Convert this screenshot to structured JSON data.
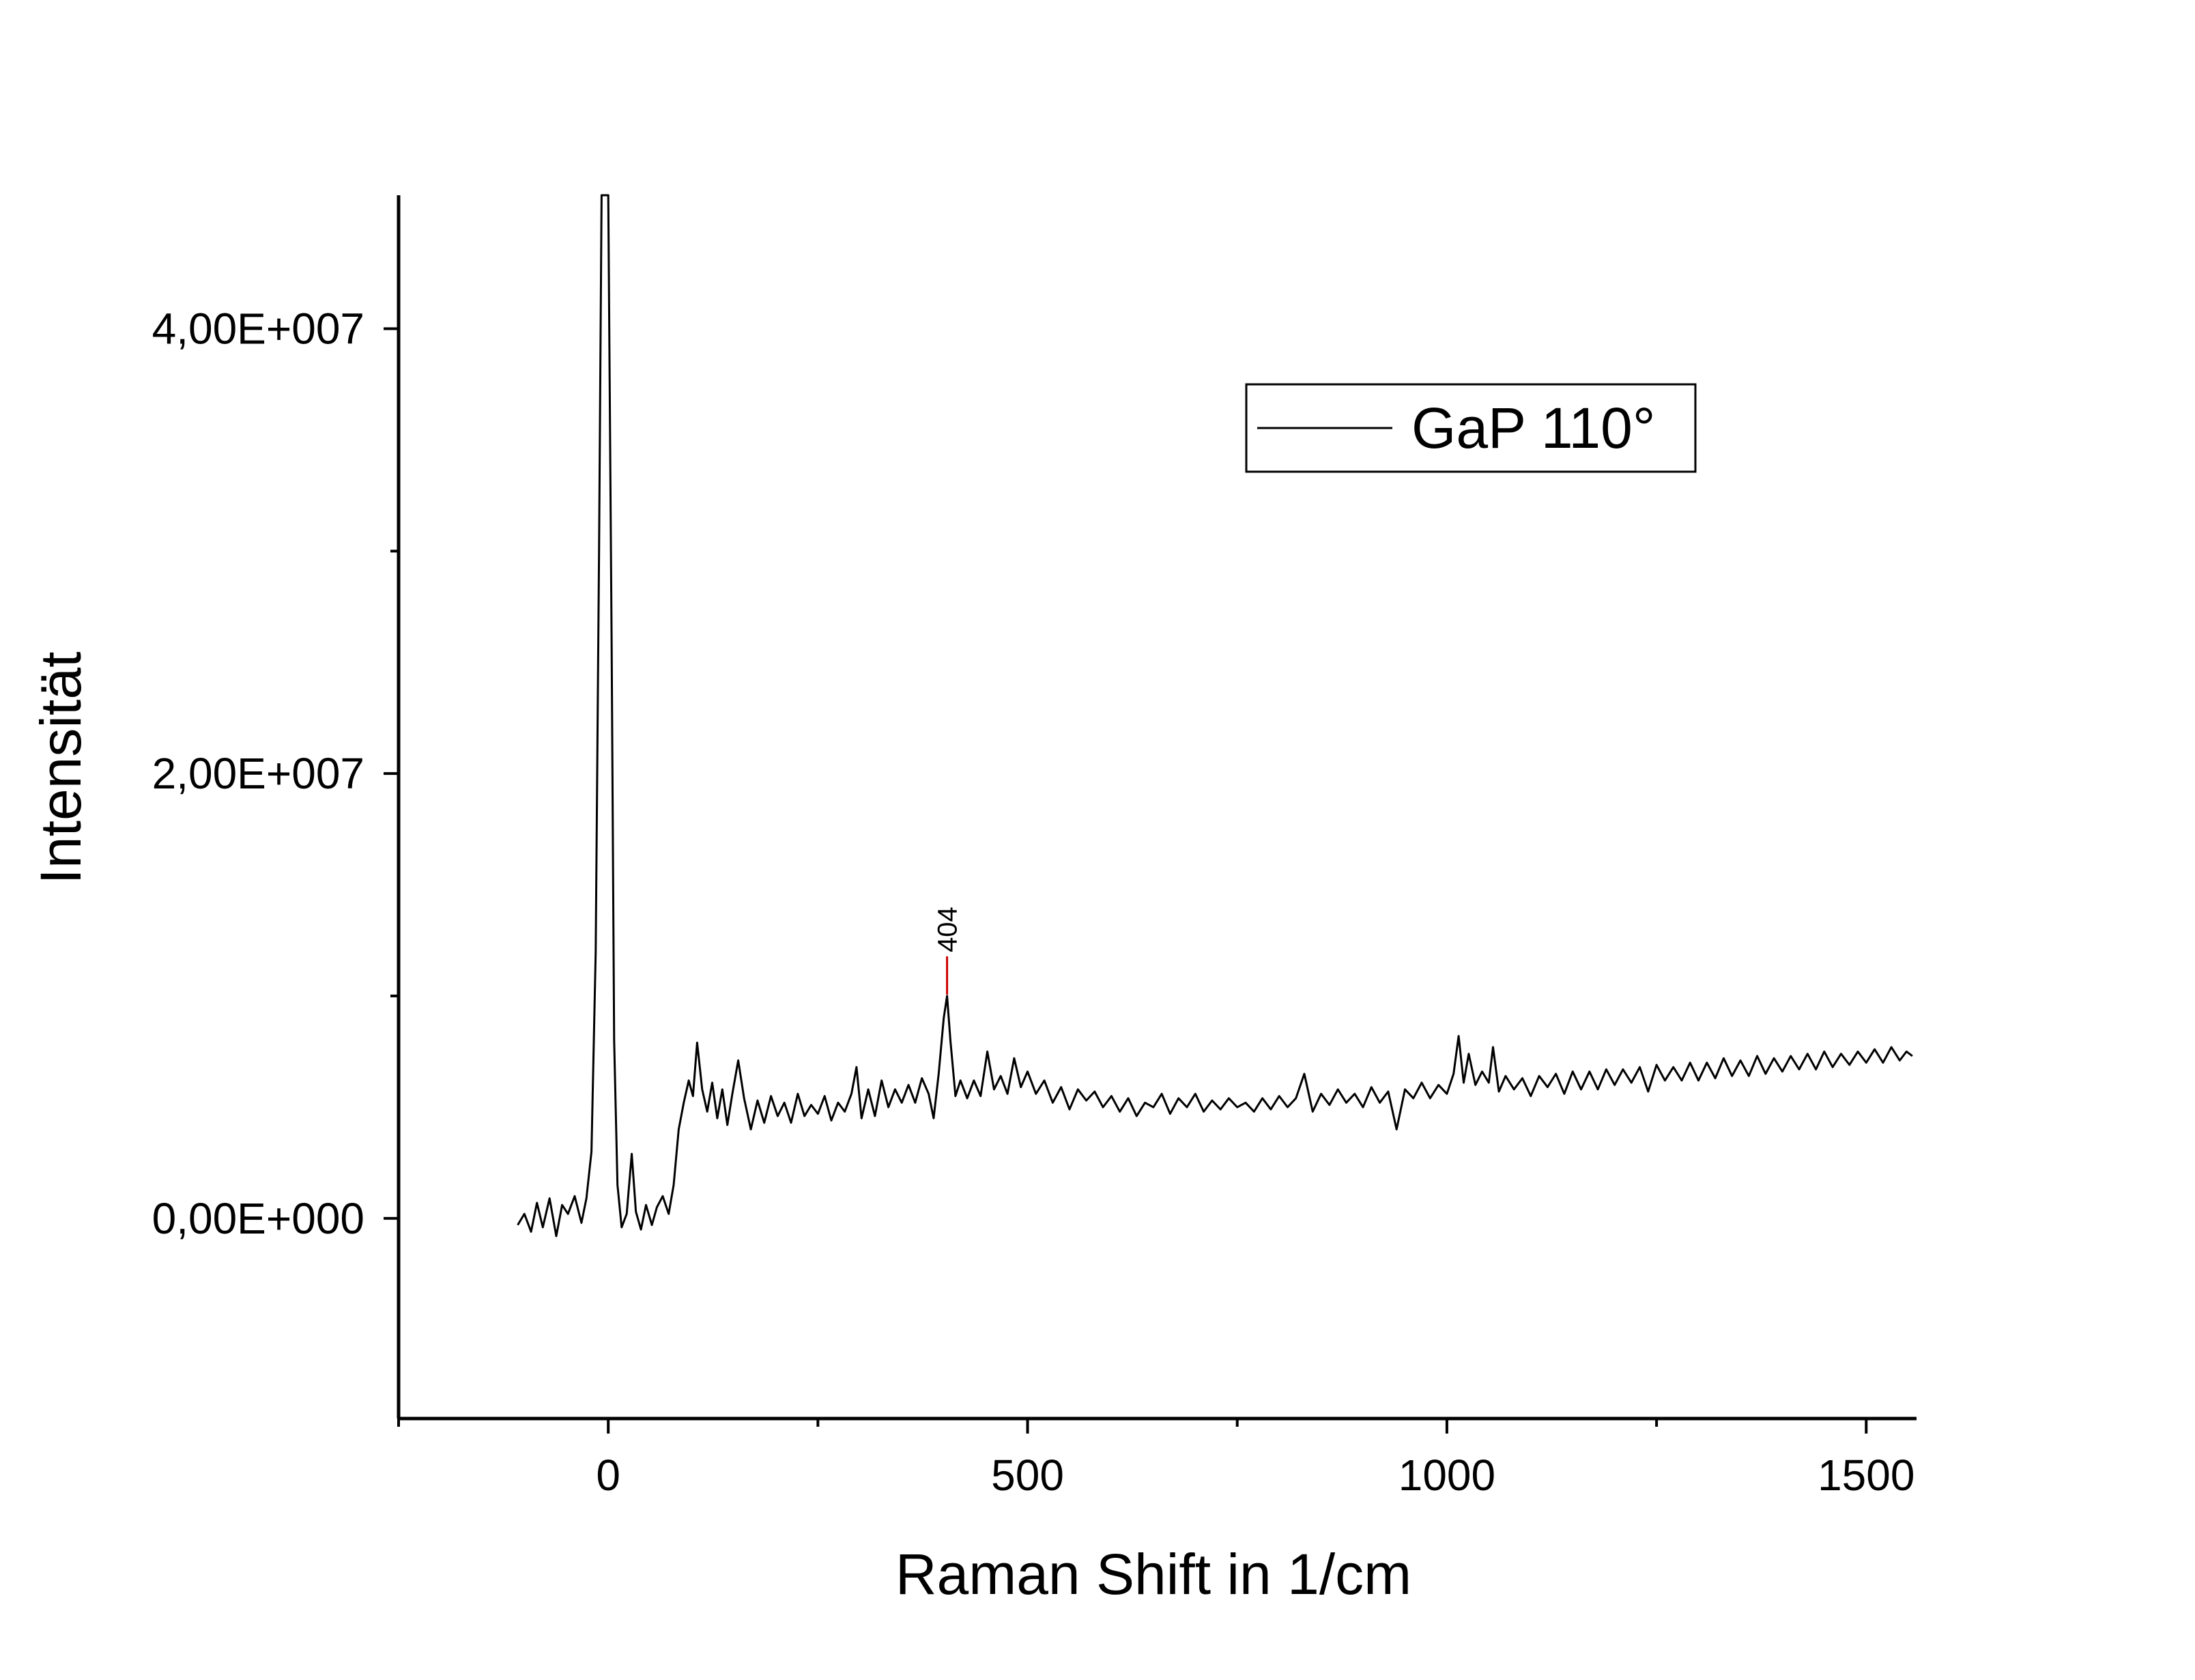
{
  "chart_data": {
    "type": "line",
    "title": "",
    "xlabel": "Raman Shift in 1/cm",
    "ylabel": "Intensität",
    "xlim": [
      -250,
      1560
    ],
    "ylim": [
      -9000000,
      46000000
    ],
    "x_ticks": [
      0,
      500,
      1000,
      1500
    ],
    "x_tick_labels": [
      "0",
      "500",
      "1000",
      "1500"
    ],
    "x_minor_ticks": [
      -250,
      250,
      750,
      1250
    ],
    "y_ticks": [
      0,
      20000000,
      40000000
    ],
    "y_tick_labels": [
      "0,00E+000",
      "2,00E+007",
      "4,00E+007"
    ],
    "y_minor_ticks": [
      10000000,
      30000000
    ],
    "grid": false,
    "legend_position": "top-right",
    "series": [
      {
        "name": "GaP 110°",
        "color": "#000000",
        "points": [
          [
            -108,
            -300000
          ],
          [
            -100,
            200000
          ],
          [
            -92,
            -600000
          ],
          [
            -85,
            700000
          ],
          [
            -78,
            -400000
          ],
          [
            -70,
            900000
          ],
          [
            -62,
            -800000
          ],
          [
            -55,
            600000
          ],
          [
            -48,
            200000
          ],
          [
            -40,
            1000000
          ],
          [
            -32,
            -200000
          ],
          [
            -26,
            900000
          ],
          [
            -20,
            3000000
          ],
          [
            -15,
            12000000
          ],
          [
            -11,
            30000000
          ],
          [
            -8,
            46000000
          ],
          [
            0,
            46000000
          ],
          [
            4,
            26000000
          ],
          [
            7,
            8000000
          ],
          [
            11,
            1500000
          ],
          [
            16,
            -400000
          ],
          [
            22,
            200000
          ],
          [
            28,
            2900000
          ],
          [
            33,
            300000
          ],
          [
            39,
            -500000
          ],
          [
            45,
            600000
          ],
          [
            52,
            -300000
          ],
          [
            58,
            500000
          ],
          [
            65,
            1000000
          ],
          [
            72,
            200000
          ],
          [
            78,
            1500000
          ],
          [
            84,
            4000000
          ],
          [
            90,
            5200000
          ],
          [
            96,
            6200000
          ],
          [
            101,
            5500000
          ],
          [
            106,
            7900000
          ],
          [
            112,
            5800000
          ],
          [
            118,
            4800000
          ],
          [
            124,
            6100000
          ],
          [
            130,
            4500000
          ],
          [
            136,
            5800000
          ],
          [
            142,
            4200000
          ],
          [
            148,
            5600000
          ],
          [
            155,
            7100000
          ],
          [
            162,
            5400000
          ],
          [
            170,
            4000000
          ],
          [
            178,
            5300000
          ],
          [
            186,
            4300000
          ],
          [
            194,
            5500000
          ],
          [
            202,
            4600000
          ],
          [
            210,
            5200000
          ],
          [
            218,
            4300000
          ],
          [
            226,
            5600000
          ],
          [
            234,
            4600000
          ],
          [
            242,
            5100000
          ],
          [
            250,
            4700000
          ],
          [
            258,
            5500000
          ],
          [
            266,
            4400000
          ],
          [
            274,
            5200000
          ],
          [
            282,
            4800000
          ],
          [
            290,
            5600000
          ],
          [
            296,
            6800000
          ],
          [
            302,
            4500000
          ],
          [
            310,
            5800000
          ],
          [
            318,
            4600000
          ],
          [
            326,
            6200000
          ],
          [
            334,
            5000000
          ],
          [
            342,
            5800000
          ],
          [
            350,
            5200000
          ],
          [
            358,
            6000000
          ],
          [
            366,
            5200000
          ],
          [
            374,
            6300000
          ],
          [
            382,
            5600000
          ],
          [
            388,
            4500000
          ],
          [
            394,
            6500000
          ],
          [
            400,
            9000000
          ],
          [
            404,
            10000000
          ],
          [
            408,
            8000000
          ],
          [
            414,
            5500000
          ],
          [
            420,
            6200000
          ],
          [
            428,
            5400000
          ],
          [
            436,
            6200000
          ],
          [
            444,
            5500000
          ],
          [
            452,
            7500000
          ],
          [
            460,
            5800000
          ],
          [
            468,
            6400000
          ],
          [
            476,
            5600000
          ],
          [
            484,
            7200000
          ],
          [
            492,
            5900000
          ],
          [
            500,
            6600000
          ],
          [
            510,
            5600000
          ],
          [
            520,
            6200000
          ],
          [
            530,
            5200000
          ],
          [
            540,
            5900000
          ],
          [
            550,
            4900000
          ],
          [
            560,
            5800000
          ],
          [
            570,
            5300000
          ],
          [
            580,
            5700000
          ],
          [
            590,
            5000000
          ],
          [
            600,
            5500000
          ],
          [
            610,
            4800000
          ],
          [
            620,
            5400000
          ],
          [
            630,
            4600000
          ],
          [
            640,
            5200000
          ],
          [
            650,
            5000000
          ],
          [
            660,
            5600000
          ],
          [
            670,
            4700000
          ],
          [
            680,
            5400000
          ],
          [
            690,
            5000000
          ],
          [
            700,
            5600000
          ],
          [
            710,
            4800000
          ],
          [
            720,
            5300000
          ],
          [
            730,
            4900000
          ],
          [
            740,
            5400000
          ],
          [
            750,
            5000000
          ],
          [
            760,
            5200000
          ],
          [
            770,
            4800000
          ],
          [
            780,
            5400000
          ],
          [
            790,
            4900000
          ],
          [
            800,
            5500000
          ],
          [
            810,
            5000000
          ],
          [
            820,
            5400000
          ],
          [
            830,
            6500000
          ],
          [
            840,
            4800000
          ],
          [
            850,
            5600000
          ],
          [
            860,
            5100000
          ],
          [
            870,
            5800000
          ],
          [
            880,
            5200000
          ],
          [
            890,
            5600000
          ],
          [
            900,
            5000000
          ],
          [
            910,
            5900000
          ],
          [
            920,
            5200000
          ],
          [
            930,
            5700000
          ],
          [
            940,
            4000000
          ],
          [
            950,
            5800000
          ],
          [
            960,
            5400000
          ],
          [
            970,
            6100000
          ],
          [
            980,
            5400000
          ],
          [
            990,
            6000000
          ],
          [
            1000,
            5600000
          ],
          [
            1008,
            6500000
          ],
          [
            1014,
            8200000
          ],
          [
            1020,
            6100000
          ],
          [
            1026,
            7400000
          ],
          [
            1034,
            6000000
          ],
          [
            1042,
            6600000
          ],
          [
            1050,
            6100000
          ],
          [
            1055,
            7700000
          ],
          [
            1062,
            5700000
          ],
          [
            1070,
            6400000
          ],
          [
            1080,
            5800000
          ],
          [
            1090,
            6300000
          ],
          [
            1100,
            5500000
          ],
          [
            1110,
            6400000
          ],
          [
            1120,
            5900000
          ],
          [
            1130,
            6500000
          ],
          [
            1140,
            5600000
          ],
          [
            1150,
            6600000
          ],
          [
            1160,
            5800000
          ],
          [
            1170,
            6600000
          ],
          [
            1180,
            5800000
          ],
          [
            1190,
            6700000
          ],
          [
            1200,
            6000000
          ],
          [
            1210,
            6700000
          ],
          [
            1220,
            6100000
          ],
          [
            1230,
            6800000
          ],
          [
            1240,
            5700000
          ],
          [
            1250,
            6900000
          ],
          [
            1260,
            6200000
          ],
          [
            1270,
            6800000
          ],
          [
            1280,
            6200000
          ],
          [
            1290,
            7000000
          ],
          [
            1300,
            6200000
          ],
          [
            1310,
            7000000
          ],
          [
            1320,
            6300000
          ],
          [
            1330,
            7200000
          ],
          [
            1340,
            6400000
          ],
          [
            1350,
            7100000
          ],
          [
            1360,
            6400000
          ],
          [
            1370,
            7300000
          ],
          [
            1380,
            6500000
          ],
          [
            1390,
            7200000
          ],
          [
            1400,
            6600000
          ],
          [
            1410,
            7300000
          ],
          [
            1420,
            6700000
          ],
          [
            1430,
            7400000
          ],
          [
            1440,
            6700000
          ],
          [
            1450,
            7500000
          ],
          [
            1460,
            6800000
          ],
          [
            1470,
            7400000
          ],
          [
            1480,
            6900000
          ],
          [
            1490,
            7500000
          ],
          [
            1500,
            7000000
          ],
          [
            1510,
            7600000
          ],
          [
            1520,
            7000000
          ],
          [
            1530,
            7700000
          ],
          [
            1540,
            7100000
          ],
          [
            1548,
            7500000
          ],
          [
            1555,
            7300000
          ]
        ]
      }
    ],
    "annotations": [
      {
        "x": 404,
        "y": 10000000,
        "text": "404",
        "color": "#cc0000"
      }
    ]
  }
}
